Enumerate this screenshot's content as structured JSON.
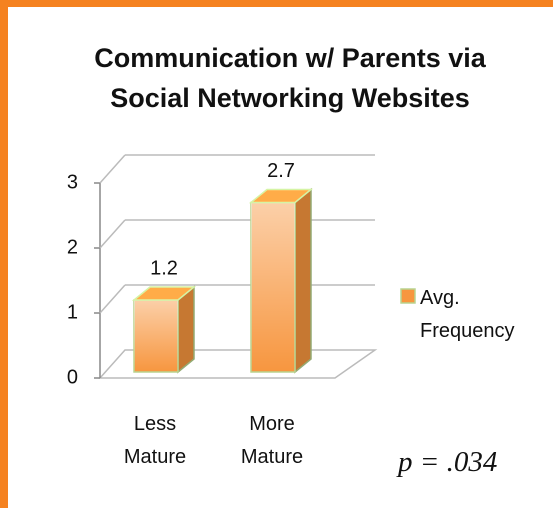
{
  "chart_data": {
    "type": "bar3d",
    "title": "Communication w/ Parents via Social Networking Websites",
    "categories": [
      "Less Mature",
      "More Mature"
    ],
    "series": [
      {
        "name": "Avg. Frequency",
        "color": "#f7963f",
        "values": [
          1.2,
          2.7
        ]
      }
    ],
    "ylim": [
      0,
      3
    ],
    "yticks": [
      0,
      1,
      2,
      3
    ],
    "grid": true,
    "legend": "right",
    "annotation": "p = .034"
  }
}
